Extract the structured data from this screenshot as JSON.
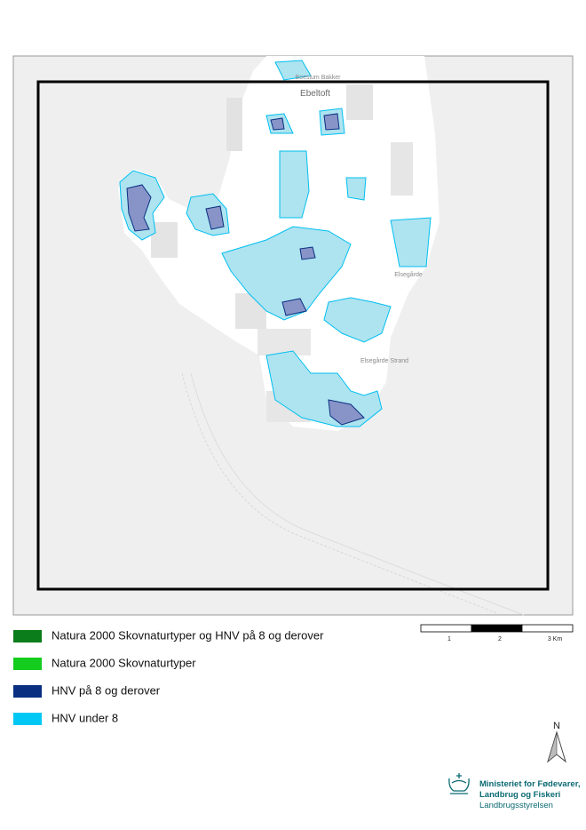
{
  "map": {
    "place_labels": [
      "Ebeltoft",
      "Boeslum Bakker",
      "Elsegårde",
      "Elsegårde Strand"
    ]
  },
  "legend": {
    "items": [
      {
        "label": "Natura 2000 Skovnaturtyper og HNV på 8 og derover",
        "color": "#0b7d1a"
      },
      {
        "label": "Natura 2000 Skovnaturtyper",
        "color": "#14cc1e"
      },
      {
        "label": "HNV på 8 og derover",
        "color": "#0a2f80"
      },
      {
        "label": "HNV under 8",
        "color": "#00c8f4"
      }
    ]
  },
  "scale_bar": {
    "labels": [
      "1",
      "2",
      "3 Km"
    ]
  },
  "north_arrow": {
    "label": "N"
  },
  "logo": {
    "lines": [
      "Ministeriet for Fødevarer,",
      "Landbrug og Fiskeri",
      "Landbrugsstyrelsen"
    ]
  }
}
